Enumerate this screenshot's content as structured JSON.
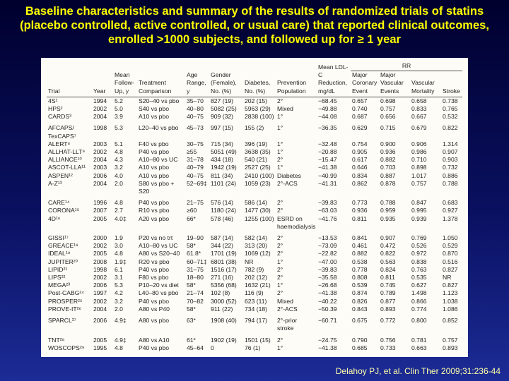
{
  "title": "Baseline characteristics and summary of the results of randomized trials of statins (placebo controlled, active controlled, or usual care) that reported clinical outcomes, enrolled >1000 subjects, and followed up for ≥ 1 year",
  "table": {
    "group_header": "RR",
    "columns": [
      "Trial",
      "Year",
      "Mean Follow-Up, y",
      "Treatment Comparison",
      "Age Range, y",
      "Gender (Female), No. (%)",
      "Diabetes, No. (%)",
      "Prevention Population",
      "Mean LDL-C Reduction, mg/dL",
      "Major Coronary Event",
      "Major Vascular Events",
      "Vascular Mortality",
      "Stroke"
    ],
    "rows": [
      [
        "4S¹",
        "1994",
        "5.2",
        "S20–40 vs pbo",
        "35–70",
        "827 (19)",
        "202 (15)",
        "2°",
        "−68.45",
        "0.657",
        "0.698",
        "0.658",
        "0.738"
      ],
      [
        "HPS²",
        "2002",
        "5.0",
        "S40 vs pbo",
        "40–80",
        "5082 (25)",
        "5963 (29)",
        "Mixed",
        "−49.88",
        "0.740",
        "0.757",
        "0.833",
        "0.765"
      ],
      [
        "CARDS³",
        "2004",
        "3.9",
        "A10 vs pbo",
        "40–75",
        "909 (32)",
        "2838 (100)",
        "1°",
        "−44.08",
        "0.687",
        "0.656",
        "0.667",
        "0.532"
      ],
      [
        "AFCAPS/ TexCAPS⁷",
        "1998",
        "5.3",
        "L20–40 vs pbo",
        "45–73",
        "997 (15)",
        "155 (2)",
        "1°",
        "−36.35",
        "0.629",
        "0.715",
        "0.679",
        "0.822"
      ],
      [
        "ALERT⁸",
        "2003",
        "5.1",
        "F40 vs pbo",
        "30–75",
        "715 (34)",
        "396 (19)",
        "1°",
        "−32.48",
        "0.754",
        "0.900",
        "0.906",
        "1.314"
      ],
      [
        "ALLHAT-LLT⁹",
        "2002",
        "4.8",
        "P40 vs pbo",
        "≥55",
        "5051 (49)",
        "3638 (35)",
        "1°",
        "−20.88",
        "0.905",
        "0.936",
        "0.986",
        "0.907"
      ],
      [
        "ALLIANCE¹⁰",
        "2004",
        "4.3",
        "A10–80 vs UC",
        "31–78",
        "434 (18)",
        "540 (21)",
        "2°",
        "−15.47",
        "0.617",
        "0.882",
        "0.710",
        "0.903"
      ],
      [
        "ASCOT-LLA¹¹",
        "2003",
        "3.2",
        "A10 vs pbo",
        "40–79",
        "1942 (19)",
        "2527 (25)",
        "1°",
        "−41.38",
        "0.646",
        "0.703",
        "0.898",
        "0.732"
      ],
      [
        "ASPEN¹²",
        "2006",
        "4.0",
        "A10 vs pbo",
        "40–75",
        "811 (34)",
        "2410 (100)",
        "Diabetes",
        "−40.99",
        "0.834",
        "0.887",
        "1.017",
        "0.886"
      ],
      [
        "A-Z¹³",
        "2004",
        "2.0",
        "S80 vs pbo + S20",
        "52–69‡",
        "1101 (24)",
        "1059 (23)",
        "2°-ACS",
        "−41.31",
        "0.862",
        "0.878",
        "0.757",
        "0.788"
      ],
      [
        "CARE¹⁴",
        "1996",
        "4.8",
        "P40 vs pbo",
        "21–75",
        "576 (14)",
        "586 (14)",
        "2°",
        "−39.83",
        "0.773",
        "0.788",
        "0.847",
        "0.683"
      ],
      [
        "CORONA¹⁵",
        "2007",
        "2.7",
        "R10 vs pbo",
        "≥60",
        "1180 (24)",
        "1477 (30)",
        "2°",
        "−63.03",
        "0.936",
        "0.959",
        "0.995",
        "0.927"
      ],
      [
        "4D¹⁶",
        "2005",
        "4.0‡",
        "A20 vs pbo",
        "66*",
        "578 (46)",
        "1255 (100)",
        "ESRD on haemodialysis",
        "−41.76",
        "0.811",
        "0.935",
        "0.939",
        "1.378"
      ],
      [
        "GISSI¹⁷",
        "2000",
        "1.9",
        "P20 vs no trt",
        "19–90",
        "587 (14)",
        "582 (14)",
        "2°",
        "−13.53",
        "0.841",
        "0.907",
        "0.769",
        "1.050"
      ],
      [
        "GREACE¹⁸",
        "2002",
        "3.0",
        "A10–80 vs UC",
        "58*",
        "344 (22)",
        "313 (20)",
        "2°",
        "−73.09",
        "0.461",
        "0.472",
        "0.526",
        "0.529"
      ],
      [
        "IDEAL¹⁹",
        "2005",
        "4.8",
        "A80 vs S20–40",
        "61.8*",
        "1701 (19)",
        "1069 (12)",
        "2°",
        "−22.82",
        "0.882",
        "0.822",
        "0.972",
        "0.870"
      ],
      [
        "JUPITER²⁰",
        "2008",
        "1.9‡",
        "R20 vs pbo",
        "60–71‡",
        "6801 (38)",
        "NR",
        "1°",
        "−47.00",
        "0.538",
        "0.563",
        "0.838",
        "0.516"
      ],
      [
        "LIPID²¹",
        "1998",
        "6.1",
        "P40 vs pbo",
        "31–75",
        "1516 (17)",
        "782 (9)",
        "2°",
        "−39.83",
        "0.778",
        "0.824",
        "0.763",
        "0.827"
      ],
      [
        "LIPS²²",
        "2002",
        "3.1",
        "F80 vs pbo",
        "18–80",
        "271 (16)",
        "202 (12)",
        "2°",
        "−35.58",
        "0.808",
        "0.811",
        "0.535",
        "NR"
      ],
      [
        "MEGA²³",
        "2006",
        "5.3",
        "P10–20 vs diet",
        "58*",
        "5356 (68)",
        "1632 (21)",
        "1°",
        "−26.68",
        "0.539",
        "0.745",
        "0.627",
        "0.827"
      ],
      [
        "Post-CABG²⁴",
        "1997",
        "4.2",
        "L40–80 vs pbo",
        "21–74",
        "102 (8)",
        "116 (9)",
        "2°",
        "−41.38",
        "0.874",
        "0.789",
        "1.498",
        "1.123"
      ],
      [
        "PROSPER²⁵",
        "2002",
        "3.2",
        "P40 vs pbo",
        "70–82",
        "3000 (52)",
        "623 (11)",
        "Mixed",
        "−40.22",
        "0.826",
        "0.877",
        "0.866",
        "1.038"
      ],
      [
        "PROVE-IT²⁶",
        "2004",
        "2.0",
        "A80 vs P40",
        "58*",
        "911 (22)",
        "734 (18)",
        "2°-ACS",
        "−50.39",
        "0.843",
        "0.893",
        "0.774",
        "1.086"
      ],
      [
        "SPARCL²⁷",
        "2006",
        "4.9‡",
        "A80 vs pbo",
        "63*",
        "1908 (40)",
        "794 (17)",
        "2°-prior stroke",
        "−60.71",
        "0.675",
        "0.772",
        "0.800",
        "0.852"
      ],
      [
        "TNT²⁸",
        "2005",
        "4.9‡",
        "A80 vs A10",
        "61*",
        "1902 (19)",
        "1501 (15)",
        "2°",
        "−24.75",
        "0.790",
        "0.756",
        "0.781",
        "0.757"
      ],
      [
        "WOSCOPS²⁹",
        "1995",
        "4.8",
        "P40 vs pbo",
        "45–64",
        "0",
        "76 (1)",
        "1°",
        "−41.38",
        "0.685",
        "0.733",
        "0.663",
        "0.893"
      ]
    ]
  },
  "citation": "Delahoy PJ, et al. Clin Ther 2009;31:236-44"
}
